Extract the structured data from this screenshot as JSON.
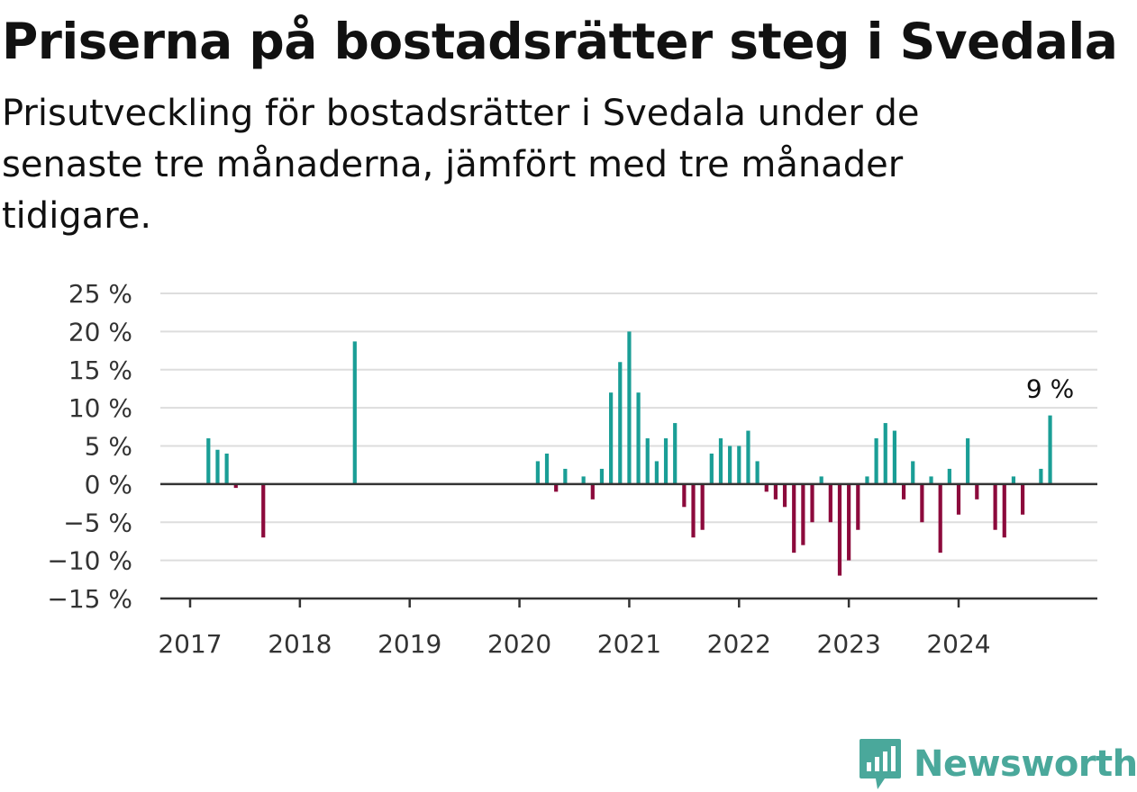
{
  "header": {
    "title": "Priserna på bostadsrätter steg i Svedala",
    "subtitle": "Prisutveckling för bostadsrätter i Svedala under de senaste tre månaderna, jämfört med tre månader tidigare."
  },
  "brand": {
    "name": "Newsworthy",
    "icon": "newsworthy-logo-icon",
    "color": "#4aa89b"
  },
  "colors": {
    "positive": "#1a9e96",
    "negative": "#8c0a3c",
    "grid": "#dddddd",
    "axis": "#333333"
  },
  "chart_data": {
    "type": "bar",
    "x_unit": "month",
    "ylim": [
      -15,
      25
    ],
    "yticks": [
      25,
      20,
      15,
      10,
      5,
      0,
      -5,
      -10,
      -15
    ],
    "ytick_labels": [
      "25 %",
      "20 %",
      "15 %",
      "10 %",
      "5 %",
      "0 %",
      "−5 %",
      "−10 %",
      "−15 %"
    ],
    "xticks": [
      "2017",
      "2018",
      "2019",
      "2020",
      "2021",
      "2022",
      "2023",
      "2024"
    ],
    "grid": true,
    "annotation": {
      "label": "9 %",
      "x": "2024-11"
    },
    "points": [
      {
        "x": "2017-03",
        "y": 6
      },
      {
        "x": "2017-04",
        "y": 4.5
      },
      {
        "x": "2017-05",
        "y": 4
      },
      {
        "x": "2017-06",
        "y": -0.5
      },
      {
        "x": "2017-09",
        "y": -7
      },
      {
        "x": "2018-07",
        "y": 18.7
      },
      {
        "x": "2020-03",
        "y": 3
      },
      {
        "x": "2020-04",
        "y": 4
      },
      {
        "x": "2020-05",
        "y": -1
      },
      {
        "x": "2020-06",
        "y": 2
      },
      {
        "x": "2020-08",
        "y": 1
      },
      {
        "x": "2020-09",
        "y": -2
      },
      {
        "x": "2020-10",
        "y": 2
      },
      {
        "x": "2020-11",
        "y": 12
      },
      {
        "x": "2020-12",
        "y": 16
      },
      {
        "x": "2021-01",
        "y": 20
      },
      {
        "x": "2021-02",
        "y": 12
      },
      {
        "x": "2021-03",
        "y": 6
      },
      {
        "x": "2021-04",
        "y": 3
      },
      {
        "x": "2021-05",
        "y": 6
      },
      {
        "x": "2021-06",
        "y": 8
      },
      {
        "x": "2021-07",
        "y": -3
      },
      {
        "x": "2021-08",
        "y": -7
      },
      {
        "x": "2021-09",
        "y": -6
      },
      {
        "x": "2021-10",
        "y": 4
      },
      {
        "x": "2021-11",
        "y": 6
      },
      {
        "x": "2021-12",
        "y": 5
      },
      {
        "x": "2022-01",
        "y": 5
      },
      {
        "x": "2022-02",
        "y": 7
      },
      {
        "x": "2022-03",
        "y": 3
      },
      {
        "x": "2022-04",
        "y": -1
      },
      {
        "x": "2022-05",
        "y": -2
      },
      {
        "x": "2022-06",
        "y": -3
      },
      {
        "x": "2022-07",
        "y": -9
      },
      {
        "x": "2022-08",
        "y": -8
      },
      {
        "x": "2022-09",
        "y": -5
      },
      {
        "x": "2022-10",
        "y": 1
      },
      {
        "x": "2022-11",
        "y": -5
      },
      {
        "x": "2022-12",
        "y": -12
      },
      {
        "x": "2023-01",
        "y": -10
      },
      {
        "x": "2023-02",
        "y": -6
      },
      {
        "x": "2023-03",
        "y": 1
      },
      {
        "x": "2023-04",
        "y": 6
      },
      {
        "x": "2023-05",
        "y": 8
      },
      {
        "x": "2023-06",
        "y": 7
      },
      {
        "x": "2023-07",
        "y": -2
      },
      {
        "x": "2023-08",
        "y": 3
      },
      {
        "x": "2023-09",
        "y": -5
      },
      {
        "x": "2023-10",
        "y": 1
      },
      {
        "x": "2023-11",
        "y": -9
      },
      {
        "x": "2023-12",
        "y": 2
      },
      {
        "x": "2024-01",
        "y": -4
      },
      {
        "x": "2024-02",
        "y": 6
      },
      {
        "x": "2024-03",
        "y": -2
      },
      {
        "x": "2024-05",
        "y": -6
      },
      {
        "x": "2024-06",
        "y": -7
      },
      {
        "x": "2024-07",
        "y": 1
      },
      {
        "x": "2024-08",
        "y": -4
      },
      {
        "x": "2024-10",
        "y": 2
      },
      {
        "x": "2024-11",
        "y": 9
      }
    ]
  }
}
